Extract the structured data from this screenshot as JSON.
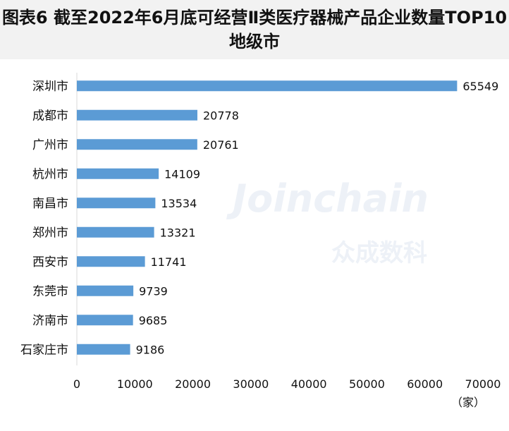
{
  "chart_data": {
    "type": "bar",
    "orientation": "horizontal",
    "title": "图表6 截至2022年6月底可经营Ⅱ类医疗器械产品企业数量TOP10地级市",
    "categories": [
      "深圳市",
      "成都市",
      "广州市",
      "杭州市",
      "南昌市",
      "郑州市",
      "西安市",
      "东莞市",
      "济南市",
      "石家庄市"
    ],
    "values": [
      65549,
      20778,
      20761,
      14109,
      13534,
      13321,
      11741,
      9739,
      9685,
      9186
    ],
    "xlim": [
      0,
      70000
    ],
    "xticks": [
      "0",
      "10000",
      "20000",
      "30000",
      "40000",
      "50000",
      "60000",
      "70000"
    ],
    "xunit": "（家）",
    "grid": false,
    "data_labels": true,
    "bar_color": "#5b9bd5",
    "title_background": "#f2f2f2"
  },
  "watermark": {
    "latin": "Joinchain",
    "chinese": "众成数科"
  }
}
